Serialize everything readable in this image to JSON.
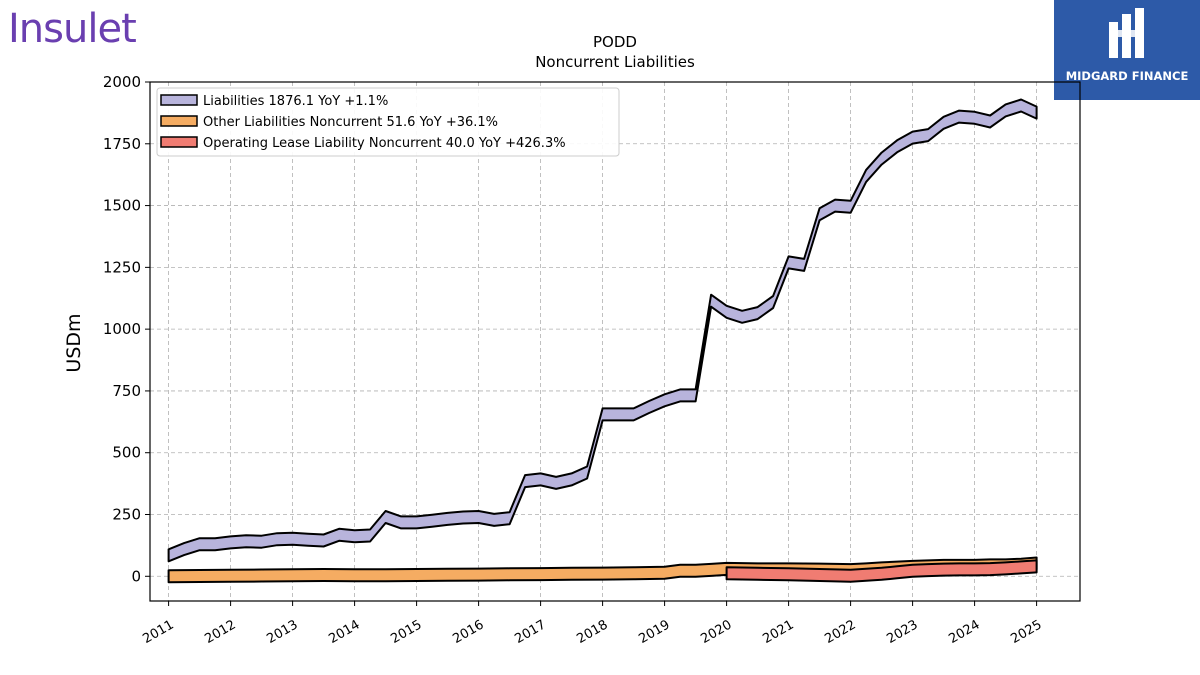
{
  "logos": {
    "left_text": "Insulet",
    "right_text": "MIDGARD FINANCE"
  },
  "chart_data": {
    "type": "area",
    "title": "PODD",
    "subtitle": "Noncurrent  Liabilities",
    "xlabel": "",
    "ylabel": "USDm",
    "xlim": [
      2010.7,
      2025.7
    ],
    "ylim": [
      -100,
      2000
    ],
    "yticks": [
      0,
      250,
      500,
      750,
      1000,
      1250,
      1500,
      1750,
      2000
    ],
    "xticks": [
      2011,
      2012,
      2013,
      2014,
      2015,
      2016,
      2017,
      2018,
      2019,
      2020,
      2021,
      2022,
      2023,
      2024,
      2025
    ],
    "grid": true,
    "legend_position": "top-left",
    "series": [
      {
        "name": "Liabilities  1876.1 YoY +1.1%",
        "color": "#b8b4dc",
        "x": [
          2011.0,
          2011.25,
          2011.5,
          2011.75,
          2012.0,
          2012.25,
          2012.5,
          2012.75,
          2013.0,
          2013.25,
          2013.5,
          2013.75,
          2014.0,
          2014.25,
          2014.5,
          2014.75,
          2015.0,
          2015.25,
          2015.5,
          2015.75,
          2016.0,
          2016.25,
          2016.5,
          2016.75,
          2017.0,
          2017.25,
          2017.5,
          2017.75,
          2018.0,
          2018.25,
          2018.5,
          2018.75,
          2019.0,
          2019.25,
          2019.5,
          2019.75,
          2020.0,
          2020.25,
          2020.5,
          2020.75,
          2021.0,
          2021.25,
          2021.5,
          2021.75,
          2022.0,
          2022.25,
          2022.5,
          2022.75,
          2023.0,
          2023.25,
          2023.5,
          2023.75,
          2024.0,
          2024.25,
          2024.5,
          2024.75,
          2025.0
        ],
        "values": [
          85,
          110,
          130,
          130,
          137,
          142,
          140,
          150,
          152,
          148,
          145,
          168,
          162,
          165,
          240,
          218,
          218,
          225,
          232,
          238,
          240,
          228,
          235,
          385,
          392,
          378,
          392,
          420,
          655,
          655,
          655,
          685,
          712,
          732,
          732,
          1115,
          1070,
          1050,
          1065,
          1110,
          1270,
          1260,
          1465,
          1500,
          1495,
          1620,
          1690,
          1740,
          1775,
          1785,
          1835,
          1860,
          1855,
          1840,
          1885,
          1905,
          1876
        ]
      },
      {
        "name": "Other Liabilities Noncurrent  51.6 YoY +36.1%",
        "color": "#f5ac62",
        "x": [
          2011.0,
          2011.5,
          2012.0,
          2012.5,
          2013.0,
          2013.5,
          2014.0,
          2014.5,
          2015.0,
          2015.5,
          2016.0,
          2016.5,
          2017.0,
          2017.5,
          2018.0,
          2018.5,
          2019.0,
          2019.25,
          2019.5,
          2019.75,
          2020.0,
          2020.5,
          2021.0,
          2021.5,
          2022.0,
          2022.25,
          2022.5,
          2022.75,
          2023.0,
          2023.25,
          2023.5,
          2023.75,
          2024.0,
          2024.25,
          2024.5,
          2024.75,
          2025.0
        ],
        "values": [
          0,
          1,
          2,
          3,
          4,
          5,
          4,
          4,
          5,
          6,
          7,
          8,
          9,
          10,
          11,
          12,
          14,
          22,
          22,
          26,
          30,
          28,
          28,
          27,
          25,
          28,
          32,
          35,
          38,
          40,
          42,
          42,
          42,
          44,
          44,
          47,
          51.6
        ]
      },
      {
        "name": "Operating Lease Liability Noncurrent  40.0 YoY +426.3%",
        "color": "#f07c72",
        "x": [
          2020.0,
          2020.5,
          2021.0,
          2021.5,
          2022.0,
          2022.25,
          2022.5,
          2022.75,
          2023.0,
          2023.25,
          2023.5,
          2023.75,
          2024.0,
          2024.25,
          2024.5,
          2024.75,
          2025.0
        ],
        "values": [
          12,
          10,
          8,
          5,
          2,
          6,
          10,
          16,
          22,
          25,
          27,
          28,
          28,
          29,
          32,
          36,
          40
        ]
      }
    ]
  }
}
